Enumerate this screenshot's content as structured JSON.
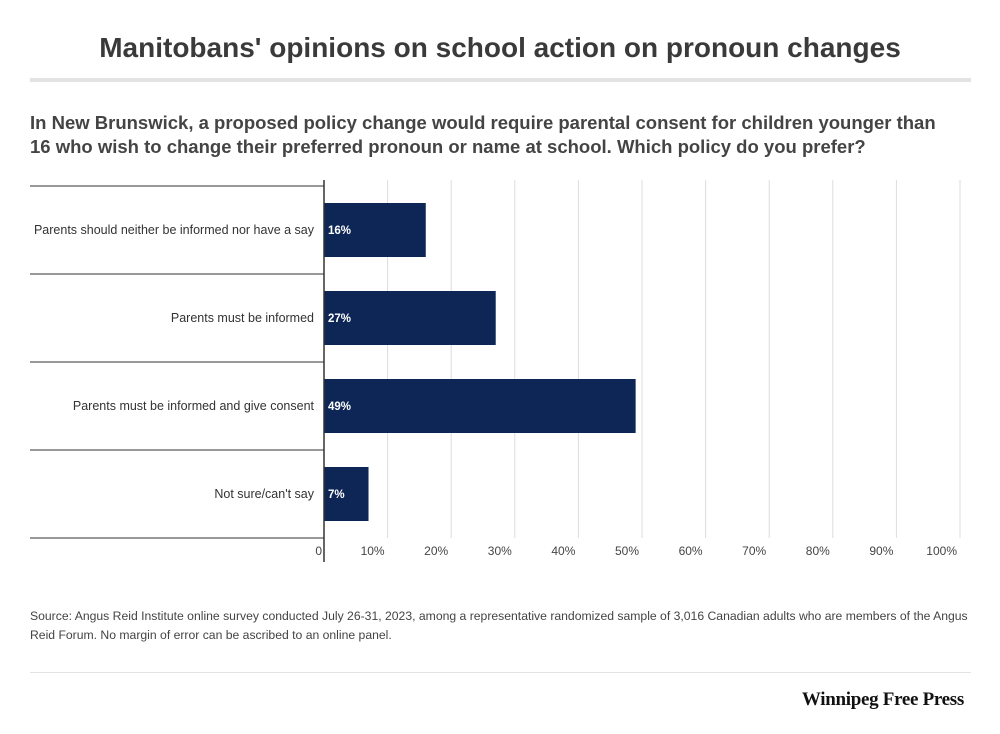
{
  "title": "Manitobans' opinions on school action on pronoun changes",
  "subtitle": "In New Brunswick, a proposed policy change would require parental consent for children younger than 16 who wish to change their preferred pronoun or name at school. Which policy do you prefer?",
  "source": "Source: Angus Reid Institute online survey conducted July 26-31, 2023, among a representative randomized sample of 3,016 Canadian adults who are members of the Angus Reid Forum. No margin of error can be ascribed to an online panel.",
  "brand": "Winnipeg Free Press",
  "colors": {
    "bar": "#0d2656",
    "grid": "#dddddd",
    "axis": "#333333"
  },
  "chart_data": {
    "type": "bar",
    "orientation": "horizontal",
    "categories": [
      "Parents should neither be informed nor have a say",
      "Parents must be informed",
      "Parents must be informed and give consent",
      "Not sure/can't say"
    ],
    "values": [
      16,
      27,
      49,
      7
    ],
    "data_labels": [
      "16%",
      "27%",
      "49%",
      "7%"
    ],
    "xlim": [
      0,
      100
    ],
    "x_ticks": [
      0,
      10,
      20,
      30,
      40,
      50,
      60,
      70,
      80,
      90,
      100
    ],
    "x_tick_labels": [
      "0",
      "10%",
      "20%",
      "30%",
      "40%",
      "50%",
      "60%",
      "70%",
      "80%",
      "90%",
      "100%"
    ],
    "grid": true,
    "legend": "none"
  }
}
